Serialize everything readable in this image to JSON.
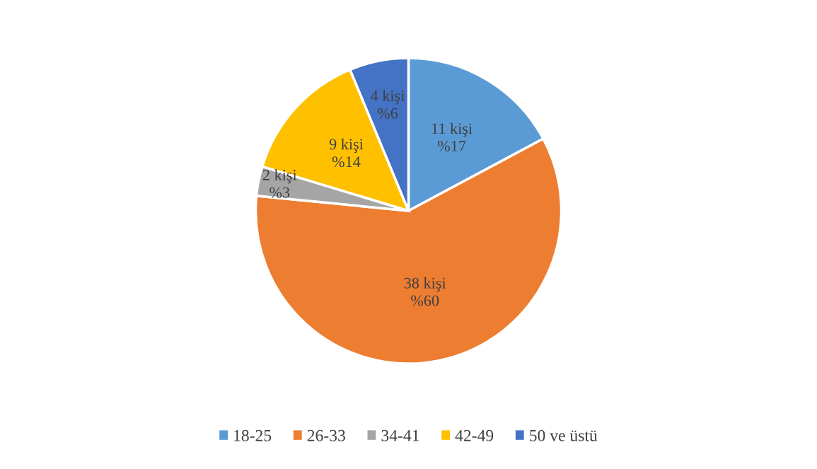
{
  "chart_data": {
    "type": "pie",
    "categories": [
      "18-25",
      "26-33",
      "34-41",
      "42-49",
      "50 ve üstü"
    ],
    "values": [
      11,
      38,
      2,
      9,
      4
    ],
    "colors": [
      "#5b9bd5",
      "#ed7d31",
      "#a5a5a5",
      "#ffc000",
      "#4472c4"
    ],
    "value_labels": [
      "11 kişi\n%17",
      "38 kişi\n%60",
      "2 kişi\n%3",
      "9 kişi\n%14",
      "4 kişi\n%6"
    ],
    "legend": "bottom"
  }
}
